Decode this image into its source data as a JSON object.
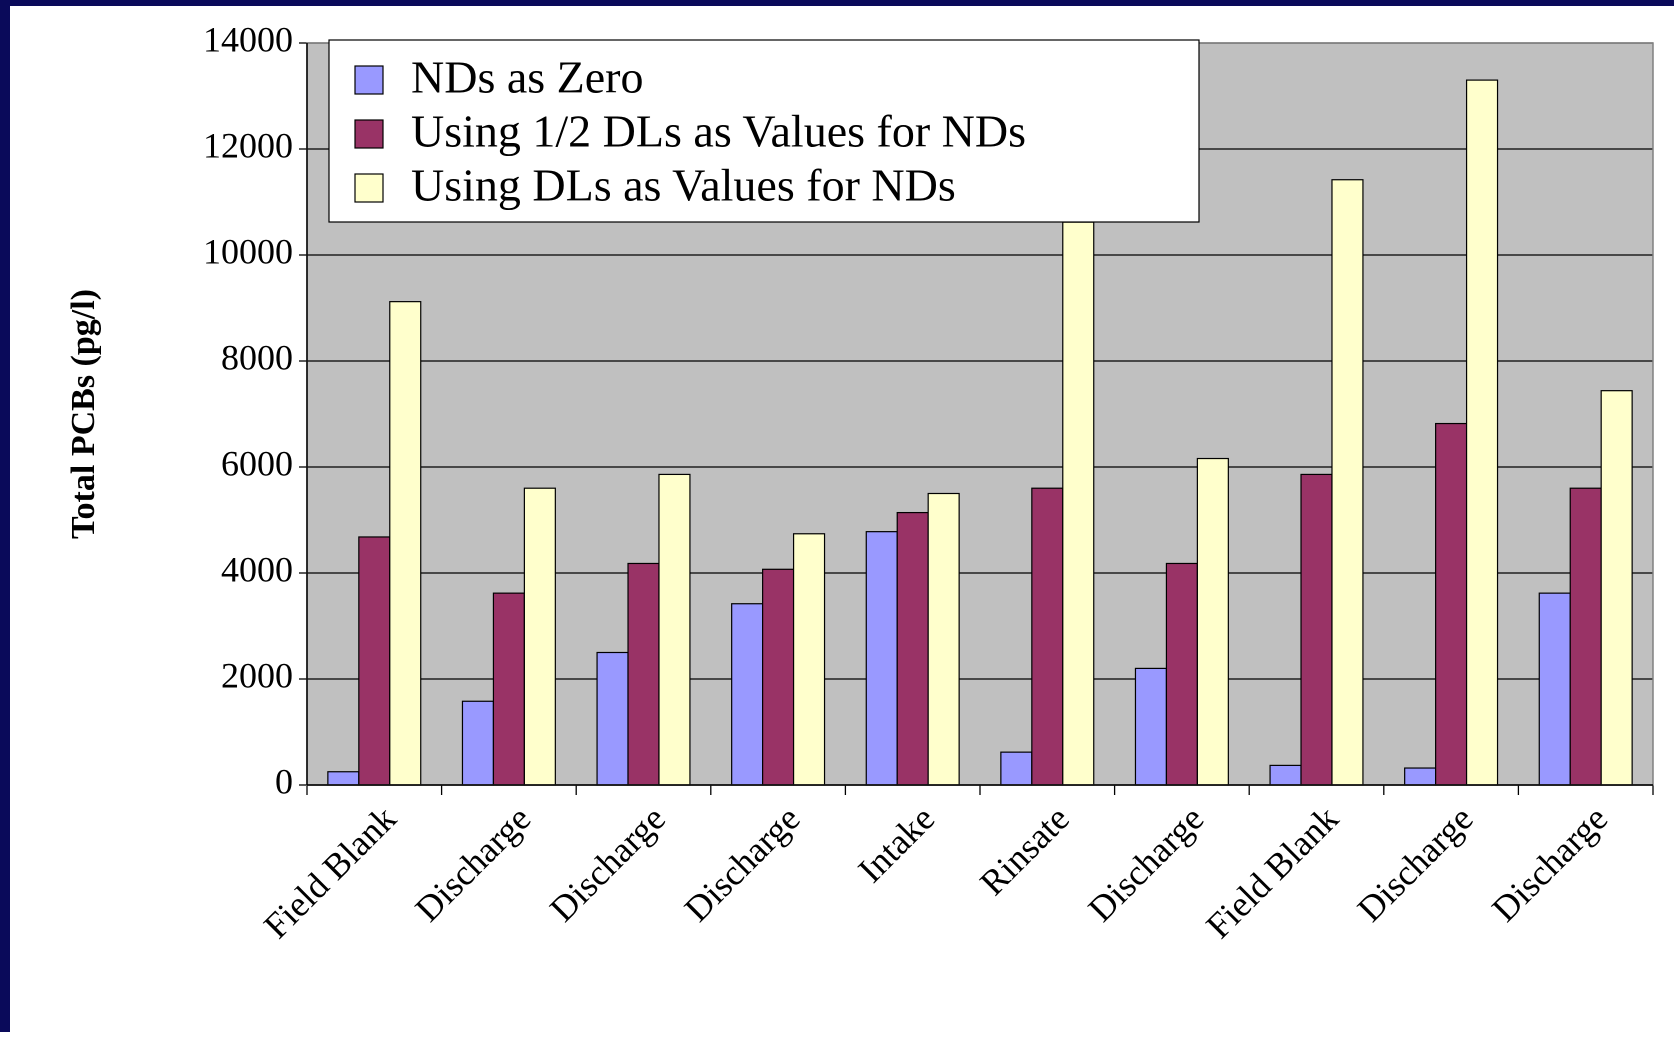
{
  "chart_data": {
    "type": "bar",
    "y_label": "Total PCBs (pg/l)",
    "categories": [
      "Field Blank",
      "Discharge",
      "Discharge",
      "Discharge",
      "Intake",
      "Rinsate",
      "Discharge",
      "Field Blank",
      "Discharge",
      "Discharge"
    ],
    "series": [
      {
        "name": "NDs as Zero",
        "color": "#9999ff",
        "values": [
          250,
          1580,
          2500,
          3420,
          4780,
          620,
          2200,
          370,
          320,
          3620
        ]
      },
      {
        "name": "Using 1/2 DLs as Values for NDs",
        "color": "#993366",
        "values": [
          4680,
          3620,
          4180,
          4070,
          5140,
          5600,
          4180,
          5860,
          6820,
          5600
        ]
      },
      {
        "name": "Using DLs as Values for NDs",
        "color": "#ffffcc",
        "values": [
          9120,
          5600,
          5860,
          4740,
          5500,
          10620,
          6160,
          11420,
          13300,
          7440
        ]
      }
    ],
    "ylim": [
      0,
      14000
    ],
    "yticks": [
      0,
      2000,
      4000,
      6000,
      8000,
      10000,
      12000,
      14000
    ],
    "grid": true,
    "legend": "top-left",
    "plot_background": "#c0c0c0"
  }
}
